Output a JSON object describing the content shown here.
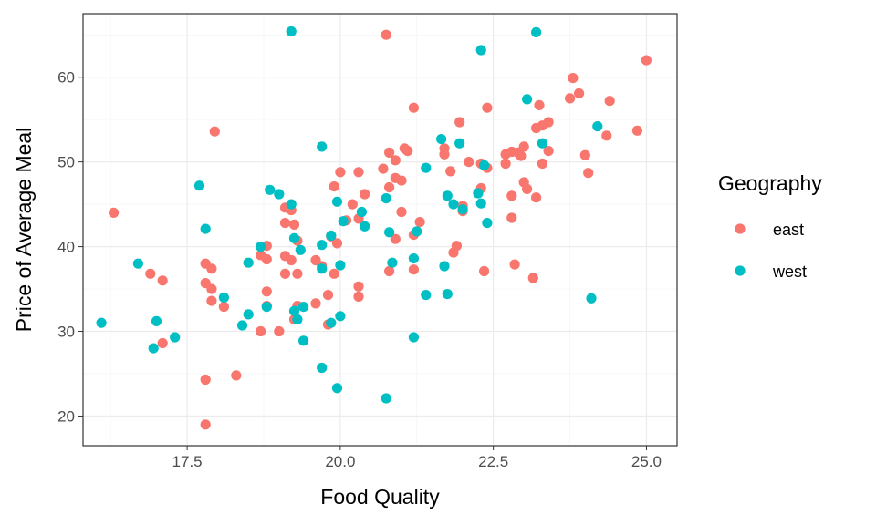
{
  "chart_data": {
    "type": "scatter",
    "title": "",
    "xlabel": "Food Quality",
    "ylabel": "Price of Average Meal",
    "xlim": [
      15.8,
      25.5
    ],
    "ylim": [
      16.5,
      67.5
    ],
    "x_ticks": [
      17.5,
      20.0,
      22.5,
      25.0
    ],
    "x_tick_labels": [
      "17.5",
      "20.0",
      "22.5",
      "25.0"
    ],
    "y_ticks": [
      20,
      30,
      40,
      50,
      60
    ],
    "y_tick_labels": [
      "20",
      "30",
      "40",
      "50",
      "60"
    ],
    "grid": true,
    "legend": {
      "title": "Geography",
      "position": "right"
    },
    "series": [
      {
        "name": "east",
        "color": "#F8766D",
        "points": [
          [
            16.3,
            44.0
          ],
          [
            16.9,
            36.8
          ],
          [
            17.1,
            36.0
          ],
          [
            17.1,
            28.6
          ],
          [
            17.8,
            24.3
          ],
          [
            17.8,
            19.0
          ],
          [
            17.8,
            35.7
          ],
          [
            17.8,
            38.0
          ],
          [
            17.9,
            37.4
          ],
          [
            17.9,
            35.0
          ],
          [
            17.9,
            33.6
          ],
          [
            17.95,
            53.6
          ],
          [
            18.1,
            32.9
          ],
          [
            18.3,
            24.8
          ],
          [
            18.7,
            39.0
          ],
          [
            18.8,
            40.1
          ],
          [
            18.7,
            30.0
          ],
          [
            18.8,
            34.7
          ],
          [
            18.8,
            38.5
          ],
          [
            18.8,
            33.0
          ],
          [
            19.0,
            30.0
          ],
          [
            19.1,
            36.8
          ],
          [
            19.1,
            42.8
          ],
          [
            19.1,
            44.6
          ],
          [
            19.1,
            38.9
          ],
          [
            19.2,
            38.4
          ],
          [
            19.2,
            44.3
          ],
          [
            19.25,
            42.6
          ],
          [
            19.3,
            36.8
          ],
          [
            19.3,
            33.0
          ],
          [
            19.25,
            31.4
          ],
          [
            19.3,
            40.7
          ],
          [
            19.6,
            38.4
          ],
          [
            19.6,
            33.3
          ],
          [
            19.7,
            37.7
          ],
          [
            19.8,
            30.8
          ],
          [
            19.8,
            34.3
          ],
          [
            19.85,
            41.2
          ],
          [
            19.9,
            36.8
          ],
          [
            19.9,
            47.1
          ],
          [
            19.95,
            40.4
          ],
          [
            20.0,
            48.8
          ],
          [
            20.1,
            43.1
          ],
          [
            20.2,
            45.0
          ],
          [
            20.3,
            43.3
          ],
          [
            20.3,
            48.8
          ],
          [
            20.3,
            35.3
          ],
          [
            20.3,
            34.1
          ],
          [
            20.4,
            46.2
          ],
          [
            20.7,
            49.2
          ],
          [
            20.75,
            65.0
          ],
          [
            20.8,
            51.1
          ],
          [
            20.8,
            37.1
          ],
          [
            20.8,
            47.0
          ],
          [
            20.9,
            48.1
          ],
          [
            20.9,
            40.9
          ],
          [
            20.9,
            50.2
          ],
          [
            21.0,
            47.8
          ],
          [
            21.0,
            44.1
          ],
          [
            21.05,
            51.6
          ],
          [
            21.1,
            51.3
          ],
          [
            21.2,
            37.3
          ],
          [
            21.2,
            41.4
          ],
          [
            21.2,
            56.4
          ],
          [
            21.3,
            42.9
          ],
          [
            21.7,
            51.6
          ],
          [
            21.7,
            50.9
          ],
          [
            21.8,
            48.9
          ],
          [
            21.85,
            39.3
          ],
          [
            21.9,
            40.1
          ],
          [
            21.95,
            54.7
          ],
          [
            22.0,
            44.8
          ],
          [
            22.0,
            44.2
          ],
          [
            22.1,
            50.0
          ],
          [
            22.3,
            49.8
          ],
          [
            22.3,
            46.9
          ],
          [
            22.35,
            37.1
          ],
          [
            22.4,
            49.3
          ],
          [
            22.4,
            56.4
          ],
          [
            22.7,
            50.9
          ],
          [
            22.7,
            49.8
          ],
          [
            22.8,
            51.2
          ],
          [
            22.8,
            46.0
          ],
          [
            22.8,
            43.4
          ],
          [
            22.85,
            37.9
          ],
          [
            22.9,
            51.1
          ],
          [
            22.95,
            50.7
          ],
          [
            23.0,
            47.6
          ],
          [
            23.0,
            51.8
          ],
          [
            23.05,
            46.8
          ],
          [
            23.15,
            36.3
          ],
          [
            23.2,
            54.0
          ],
          [
            23.2,
            45.8
          ],
          [
            23.25,
            56.7
          ],
          [
            23.3,
            49.8
          ],
          [
            23.3,
            54.3
          ],
          [
            23.4,
            54.7
          ],
          [
            23.4,
            51.3
          ],
          [
            23.75,
            57.5
          ],
          [
            23.8,
            59.9
          ],
          [
            23.9,
            58.1
          ],
          [
            24.0,
            50.8
          ],
          [
            24.05,
            48.7
          ],
          [
            24.35,
            53.1
          ],
          [
            24.4,
            57.2
          ],
          [
            24.85,
            53.7
          ],
          [
            25.0,
            62.0
          ]
        ]
      },
      {
        "name": "west",
        "color": "#00BFC4",
        "points": [
          [
            16.1,
            31.0
          ],
          [
            16.7,
            38.0
          ],
          [
            16.95,
            28.0
          ],
          [
            17.0,
            31.2
          ],
          [
            17.3,
            29.3
          ],
          [
            17.7,
            47.2
          ],
          [
            17.8,
            42.1
          ],
          [
            18.1,
            34.0
          ],
          [
            18.4,
            30.7
          ],
          [
            18.5,
            32.0
          ],
          [
            18.5,
            38.1
          ],
          [
            18.7,
            40.0
          ],
          [
            18.8,
            32.9
          ],
          [
            18.85,
            46.7
          ],
          [
            19.0,
            46.2
          ],
          [
            19.2,
            45.0
          ],
          [
            19.25,
            41.0
          ],
          [
            19.2,
            65.4
          ],
          [
            19.25,
            32.4
          ],
          [
            19.3,
            31.4
          ],
          [
            19.35,
            39.6
          ],
          [
            19.4,
            32.9
          ],
          [
            19.4,
            28.9
          ],
          [
            19.7,
            51.8
          ],
          [
            19.7,
            40.2
          ],
          [
            19.7,
            37.4
          ],
          [
            19.7,
            25.7
          ],
          [
            19.85,
            31.0
          ],
          [
            19.85,
            41.3
          ],
          [
            19.95,
            45.3
          ],
          [
            19.95,
            23.3
          ],
          [
            20.0,
            31.8
          ],
          [
            20.0,
            37.8
          ],
          [
            20.05,
            43.0
          ],
          [
            20.35,
            44.1
          ],
          [
            20.4,
            42.4
          ],
          [
            20.75,
            45.7
          ],
          [
            20.75,
            22.1
          ],
          [
            20.8,
            41.7
          ],
          [
            20.85,
            38.1
          ],
          [
            21.2,
            38.6
          ],
          [
            21.2,
            29.3
          ],
          [
            21.25,
            41.8
          ],
          [
            21.4,
            34.3
          ],
          [
            21.4,
            49.3
          ],
          [
            21.65,
            52.7
          ],
          [
            21.7,
            37.7
          ],
          [
            21.75,
            34.4
          ],
          [
            21.75,
            46.0
          ],
          [
            21.85,
            45.0
          ],
          [
            21.95,
            52.2
          ],
          [
            22.0,
            44.4
          ],
          [
            22.25,
            46.3
          ],
          [
            22.3,
            45.1
          ],
          [
            22.3,
            63.2
          ],
          [
            22.35,
            49.6
          ],
          [
            22.4,
            42.8
          ],
          [
            23.05,
            57.4
          ],
          [
            23.2,
            65.3
          ],
          [
            23.3,
            52.2
          ],
          [
            24.1,
            33.9
          ],
          [
            24.2,
            54.2
          ]
        ]
      }
    ]
  }
}
